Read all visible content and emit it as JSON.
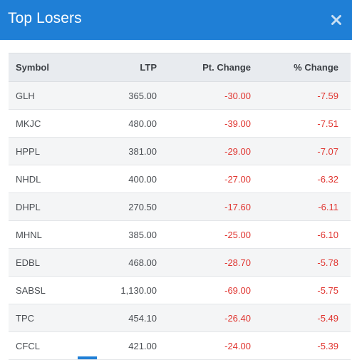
{
  "dialog": {
    "title": "Top Losers",
    "close_icon": "close-icon",
    "accent_color": "#1f7fd6",
    "negative_color": "#e0342f"
  },
  "table": {
    "headers": {
      "symbol": "Symbol",
      "ltp": "LTP",
      "pt_change": "Pt. Change",
      "pct_change": "% Change"
    },
    "rows": [
      {
        "symbol": "GLH",
        "ltp": "365.00",
        "pt_change": "-30.00",
        "pct_change": "-7.59"
      },
      {
        "symbol": "MKJC",
        "ltp": "480.00",
        "pt_change": "-39.00",
        "pct_change": "-7.51"
      },
      {
        "symbol": "HPPL",
        "ltp": "381.00",
        "pt_change": "-29.00",
        "pct_change": "-7.07"
      },
      {
        "symbol": "NHDL",
        "ltp": "400.00",
        "pt_change": "-27.00",
        "pct_change": "-6.32"
      },
      {
        "symbol": "DHPL",
        "ltp": "270.50",
        "pt_change": "-17.60",
        "pct_change": "-6.11"
      },
      {
        "symbol": "MHNL",
        "ltp": "385.00",
        "pt_change": "-25.00",
        "pct_change": "-6.10"
      },
      {
        "symbol": "EDBL",
        "ltp": "468.00",
        "pt_change": "-28.70",
        "pct_change": "-5.78"
      },
      {
        "symbol": "SABSL",
        "ltp": "1,130.00",
        "pt_change": "-69.00",
        "pct_change": "-5.75"
      },
      {
        "symbol": "TPC",
        "ltp": "454.10",
        "pt_change": "-26.40",
        "pct_change": "-5.49"
      },
      {
        "symbol": "CFCL",
        "ltp": "421.00",
        "pt_change": "-24.00",
        "pct_change": "-5.39"
      }
    ]
  }
}
